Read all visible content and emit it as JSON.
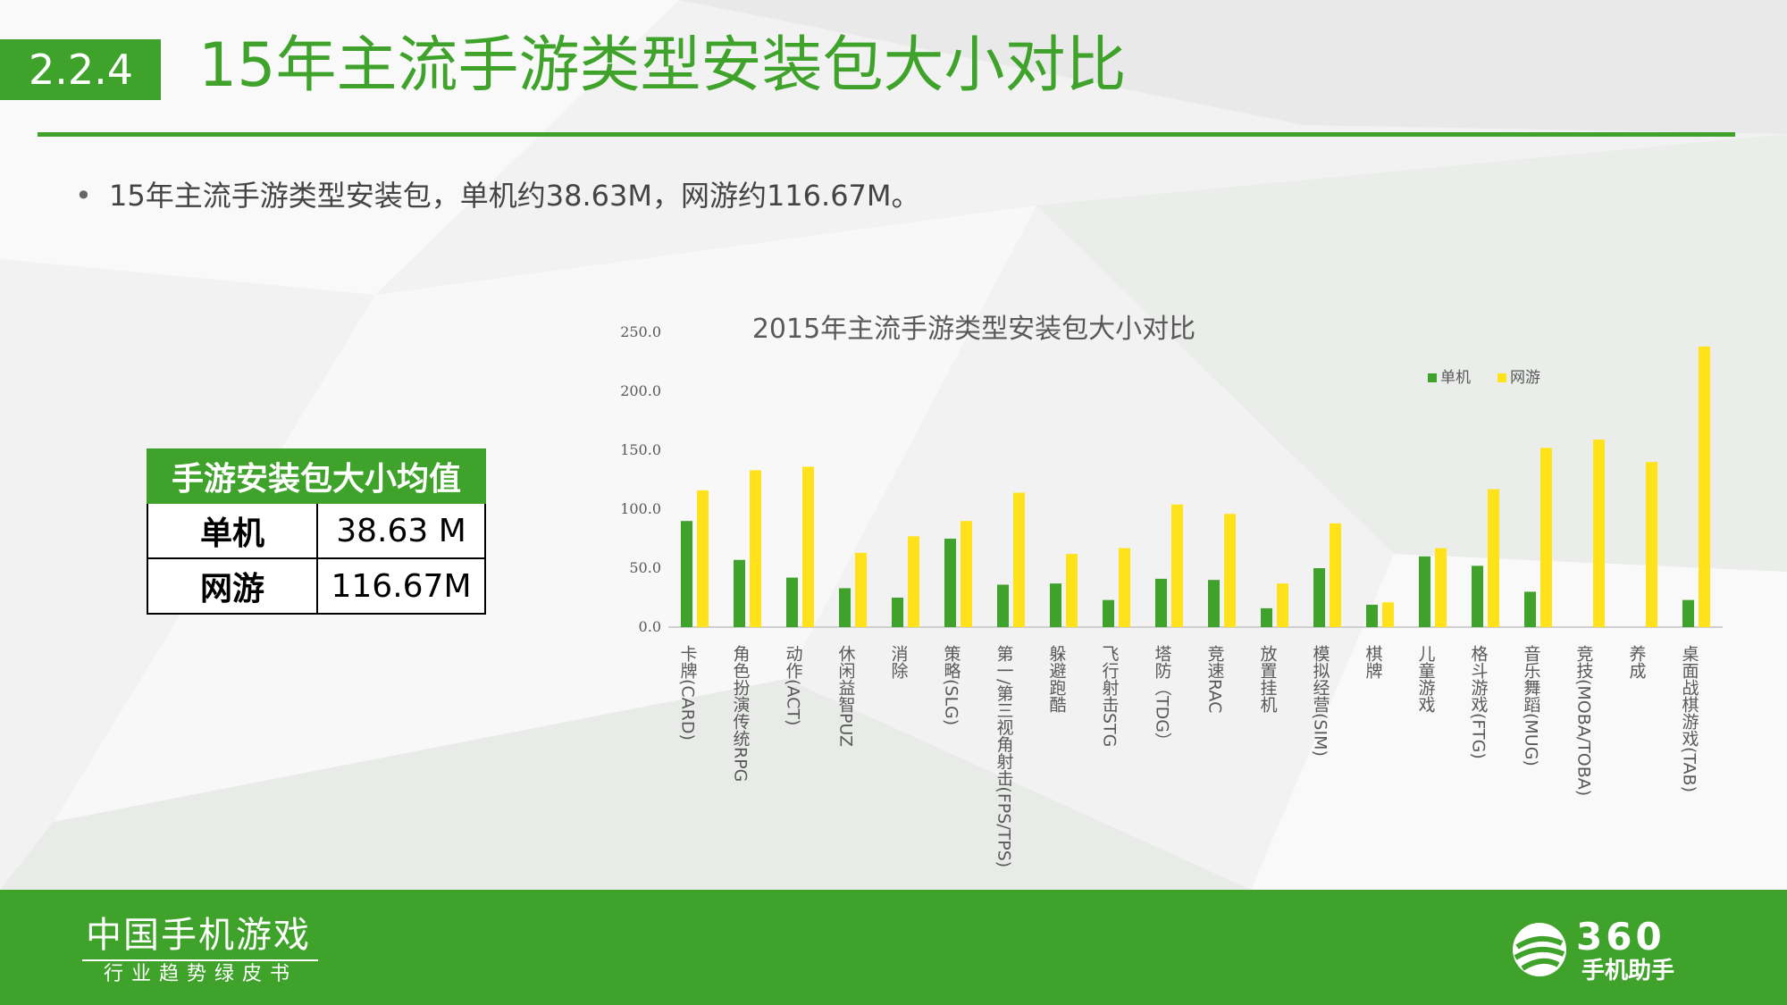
{
  "header": {
    "section_number": "2.2.4",
    "title": "15年主流手游类型安装包大小对比"
  },
  "summary": {
    "bullet": "15年主流手游类型安装包，单机约38.63M，网游约116.67M。"
  },
  "avg_table": {
    "header": "手游安装包大小均值",
    "rows": [
      {
        "label": "单机",
        "value": "38.63 M"
      },
      {
        "label": "网游",
        "value": "116.67M"
      }
    ]
  },
  "chart_data": {
    "type": "bar",
    "title": "2015年主流手游类型安装包大小对比",
    "xlabel": "",
    "ylabel": "",
    "ylim": [
      0,
      250
    ],
    "yticks": [
      "0.0",
      "50.0",
      "100.0",
      "150.0",
      "200.0",
      "250.0"
    ],
    "legend_position": "top-right",
    "grid": false,
    "categories": [
      "卡牌(CARD)",
      "角色扮演传统RPG",
      "动作(ACT)",
      "休闲益智PUZ",
      "消除",
      "策略(SLG)",
      "第一/第三视角射击(FPS/TPS)",
      "躲避跑酷",
      "飞行射击STG",
      "塔防（TDG）",
      "竞速RAC",
      "放置挂机",
      "模拟经营(SIM)",
      "棋牌",
      "儿童游戏",
      "格斗游戏(FTG)",
      "音乐舞蹈(MUG)",
      "竞技(MOBA/TOBA)",
      "养成",
      "桌面战棋游戏(TAB)"
    ],
    "series": [
      {
        "name": "单机",
        "color": "#3fa32b",
        "values": [
          90,
          57,
          42,
          33,
          25,
          75,
          36,
          37,
          23,
          41,
          40,
          16,
          50,
          19,
          60,
          52,
          30,
          null,
          null,
          23
        ]
      },
      {
        "name": "网游",
        "color": "#ffe219",
        "values": [
          116,
          133,
          136,
          63,
          77,
          90,
          114,
          62,
          67,
          104,
          96,
          37,
          88,
          21,
          67,
          117,
          152,
          159,
          140,
          238
        ]
      }
    ]
  },
  "footer": {
    "brand_main": "中国手机游戏",
    "brand_sub": "行业趋势绿皮书",
    "logo_number": "360",
    "logo_text": "手机助手"
  }
}
